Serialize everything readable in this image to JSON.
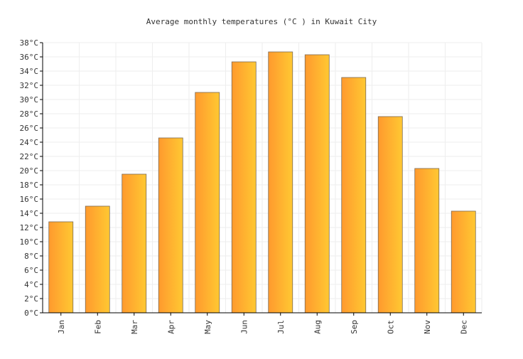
{
  "chart_data": {
    "type": "bar",
    "title": "Average monthly temperatures (°C ) in Kuwait City",
    "categories": [
      "Jan",
      "Feb",
      "Mar",
      "Apr",
      "May",
      "Jun",
      "Jul",
      "Aug",
      "Sep",
      "Oct",
      "Nov",
      "Dec"
    ],
    "values": [
      12.8,
      15.0,
      19.5,
      24.6,
      31.0,
      35.3,
      36.7,
      36.3,
      33.1,
      27.6,
      20.3,
      14.3
    ],
    "ylim": [
      0,
      38
    ],
    "y_ticks": [
      0,
      2,
      4,
      6,
      8,
      10,
      12,
      14,
      16,
      18,
      20,
      22,
      24,
      26,
      28,
      30,
      32,
      34,
      36,
      38
    ],
    "y_tick_suffix": "°C",
    "grid": true,
    "colors": {
      "bar_start": "#ff9a2e",
      "bar_end": "#ffc832",
      "bar_stroke": "#7a6a55",
      "grid": "#eeeeee",
      "axis": "#000000",
      "text": "#333333"
    }
  }
}
